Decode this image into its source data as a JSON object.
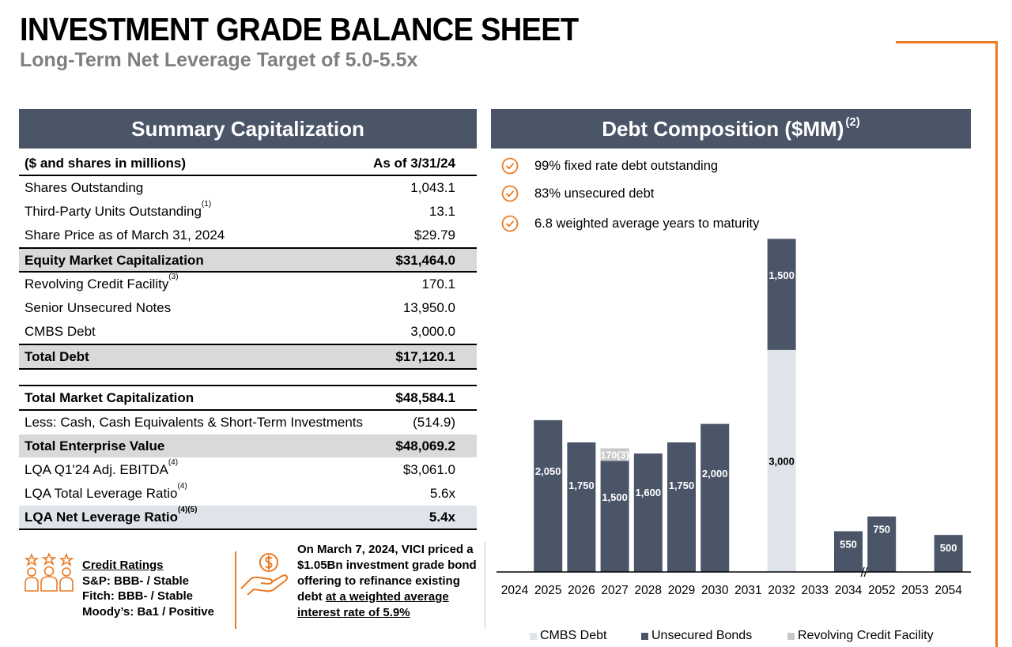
{
  "title": "INVESTMENT GRADE BALANCE SHEET",
  "subtitle": "Long-Term Net Leverage Target of 5.0-5.5x",
  "colors": {
    "accent": "#ea7a23",
    "header": "#4b5568",
    "unsecured": "#4b5568",
    "cmbs": "#dfe3ea",
    "revolver": "#c8c8c8"
  },
  "summary": {
    "header": "Summary Capitalization",
    "col_label": "($ and shares in millions)",
    "col_date": "As of 3/31/24",
    "rows": [
      {
        "label": "Shares Outstanding",
        "value": "1,043.1"
      },
      {
        "label": "Third-Party Units Outstanding",
        "sup": "(1)",
        "value": "13.1"
      },
      {
        "label": "Share Price as of March 31, 2024",
        "value": "$29.79"
      },
      {
        "label": "Equity Market Capitalization",
        "value": "$31,464.0"
      },
      {
        "label": "Revolving Credit Facility",
        "sup": "(3)",
        "value": "170.1"
      },
      {
        "label": "Senior Unsecured Notes",
        "value": "13,950.0"
      },
      {
        "label": "CMBS Debt",
        "value": "3,000.0"
      },
      {
        "label": "Total Debt",
        "value": "$17,120.1"
      },
      {
        "label": "Total Market Capitalization",
        "value": "$48,584.1"
      },
      {
        "label": "Less: Cash, Cash Equivalents & Short-Term Investments",
        "value": "(514.9)"
      },
      {
        "label": "Total Enterprise Value",
        "value": "$48,069.2"
      },
      {
        "label": "LQA Q1'24 Adj. EBITDA",
        "sup": "(4)",
        "value": "$3,061.0"
      },
      {
        "label": "LQA Total Leverage Ratio",
        "sup": "(4)",
        "value": "5.6x"
      },
      {
        "label": "LQA Net Leverage Ratio",
        "sup": "(4)(5)",
        "value": "5.4x"
      }
    ]
  },
  "ratings": {
    "title": "Credit Ratings",
    "sp": "S&P: BBB- / Stable",
    "fitch": "Fitch: BBB- / Stable",
    "moodys": "Moody’s: Ba1 / Positive",
    "icon": "people-stars-icon"
  },
  "offering": {
    "text": "On March 7, 2024, VICI priced a $1.05Bn investment grade bond offering to refinance existing debt",
    "underlined": "at a weighted average interest rate of 5.9%",
    "icon": "dollar-hand-icon"
  },
  "debt": {
    "header": "Debt Composition ($MM)",
    "header_sup": "(2)",
    "bullets": [
      "99% fixed rate debt outstanding",
      "83% unsecured debt",
      "6.8 weighted average years to maturity"
    ]
  },
  "chart_data": {
    "type": "bar",
    "stacked": true,
    "categories": [
      "2024",
      "2025",
      "2026",
      "2027",
      "2028",
      "2029",
      "2030",
      "2031",
      "2032",
      "2033",
      "2034",
      "2052",
      "2053",
      "2054"
    ],
    "series": [
      {
        "name": "CMBS Debt",
        "values": [
          0,
          0,
          0,
          0,
          0,
          0,
          0,
          0,
          3000,
          0,
          0,
          0,
          0,
          0
        ],
        "labels": [
          "",
          "",
          "",
          "",
          "",
          "",
          "",
          "",
          "3,000",
          "",
          "",
          "",
          "",
          ""
        ]
      },
      {
        "name": "Unsecured Bonds",
        "values": [
          0,
          2050,
          1750,
          1500,
          1600,
          1750,
          2000,
          0,
          1500,
          0,
          550,
          750,
          0,
          500
        ],
        "labels": [
          "",
          "2,050",
          "1,750",
          "1,500",
          "1,600",
          "1,750",
          "2,000",
          "",
          "1,500",
          "",
          "550",
          "750",
          "",
          "500"
        ]
      },
      {
        "name": "Revolving Credit Facility",
        "values": [
          0,
          0,
          0,
          170,
          0,
          0,
          0,
          0,
          0,
          0,
          0,
          0,
          0,
          0
        ],
        "labels": [
          "",
          "",
          "",
          "170(3)",
          "",
          "",
          "",
          "",
          "",
          "",
          "",
          "",
          "",
          ""
        ]
      }
    ],
    "axis_break": "2034-2052",
    "legend": "bottom"
  }
}
